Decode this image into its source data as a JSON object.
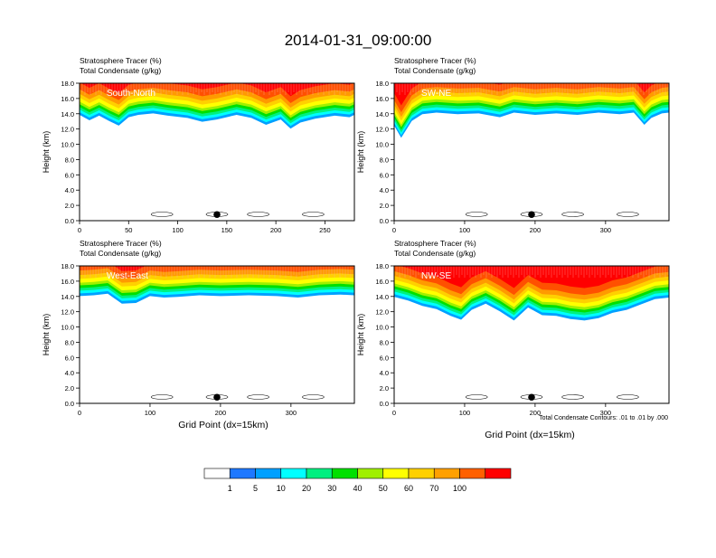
{
  "figure": {
    "title": "2014-01-31_09:00:00",
    "footnote": "Total Condensate Contours: .01 to .01 by .000",
    "xlabel": "Grid Point (dx=15km)",
    "ylabel": "Height (km)"
  },
  "colorbar": {
    "colors": [
      "#ffffff",
      "#1e78ff",
      "#00a0ff",
      "#00ffff",
      "#00f080",
      "#00e000",
      "#a0f000",
      "#ffff00",
      "#ffd000",
      "#ffa000",
      "#ff6000",
      "#ff0000"
    ],
    "labels": [
      "1",
      "5",
      "10",
      "20",
      "30",
      "40",
      "50",
      "60",
      "70",
      "100"
    ]
  },
  "chart_data": [
    {
      "type": "heatmap",
      "panel": "South-North",
      "title_left_1": "Stratosphere Tracer   (%)",
      "title_left_2": "Total Condensate   (g/kg)",
      "xlim": [
        0,
        280
      ],
      "xticks": [
        0,
        50,
        100,
        150,
        200,
        250
      ],
      "ylim": [
        0,
        18
      ],
      "yticks": [
        0,
        2,
        4,
        6,
        8,
        10,
        12,
        14,
        16,
        18
      ],
      "tropopause_km": [
        [
          0,
          15.6
        ],
        [
          10,
          14.9
        ],
        [
          20,
          15.5
        ],
        [
          30,
          14.8
        ],
        [
          40,
          14.2
        ],
        [
          50,
          15.3
        ],
        [
          60,
          15.6
        ],
        [
          75,
          15.8
        ],
        [
          90,
          15.5
        ],
        [
          110,
          15.2
        ],
        [
          125,
          14.7
        ],
        [
          140,
          15.0
        ],
        [
          160,
          15.6
        ],
        [
          175,
          15.2
        ],
        [
          190,
          14.3
        ],
        [
          205,
          15.0
        ],
        [
          215,
          13.8
        ],
        [
          225,
          14.6
        ],
        [
          240,
          15.1
        ],
        [
          260,
          15.5
        ],
        [
          275,
          15.3
        ],
        [
          280,
          15.6
        ]
      ],
      "contour_label": ".01",
      "station_x": 140
    },
    {
      "type": "heatmap",
      "panel": "SW-NE",
      "title_left_1": "Stratosphere Tracer   (%)",
      "title_left_2": "Total Condensate   (g/kg)",
      "xlim": [
        0,
        390
      ],
      "xticks": [
        0,
        100,
        200,
        300
      ],
      "ylim": [
        0,
        18
      ],
      "yticks": [
        0,
        2,
        4,
        6,
        8,
        10,
        12,
        14,
        16,
        18
      ],
      "tropopause_km": [
        [
          0,
          14.2
        ],
        [
          10,
          12.6
        ],
        [
          25,
          14.8
        ],
        [
          40,
          15.7
        ],
        [
          60,
          15.9
        ],
        [
          90,
          15.7
        ],
        [
          120,
          15.8
        ],
        [
          150,
          15.3
        ],
        [
          170,
          15.9
        ],
        [
          200,
          15.6
        ],
        [
          230,
          15.8
        ],
        [
          260,
          15.6
        ],
        [
          290,
          15.9
        ],
        [
          320,
          15.7
        ],
        [
          340,
          15.9
        ],
        [
          355,
          14.3
        ],
        [
          365,
          15.2
        ],
        [
          380,
          15.8
        ],
        [
          390,
          15.9
        ]
      ],
      "station_x": 195
    },
    {
      "type": "heatmap",
      "panel": "West-East",
      "title_left_1": "Stratosphere Tracer   (%)",
      "title_left_2": "Total Condensate   (g/kg)",
      "xlim": [
        0,
        390
      ],
      "xticks": [
        0,
        100,
        200,
        300
      ],
      "ylim": [
        0,
        18
      ],
      "yticks": [
        0,
        2,
        4,
        6,
        8,
        10,
        12,
        14,
        16,
        18
      ],
      "tropopause_km": [
        [
          0,
          15.8
        ],
        [
          20,
          15.9
        ],
        [
          40,
          16.1
        ],
        [
          60,
          14.8
        ],
        [
          80,
          14.9
        ],
        [
          100,
          15.8
        ],
        [
          120,
          15.6
        ],
        [
          140,
          15.7
        ],
        [
          170,
          15.9
        ],
        [
          200,
          15.8
        ],
        [
          240,
          15.9
        ],
        [
          280,
          15.8
        ],
        [
          310,
          15.6
        ],
        [
          340,
          15.9
        ],
        [
          370,
          16.0
        ],
        [
          390,
          15.9
        ]
      ],
      "contour_labels": [
        ".01",
        ".01"
      ],
      "station_x": 195
    },
    {
      "type": "heatmap",
      "panel": "NW-SE",
      "title_left_1": "Stratosphere Tracer   (%)",
      "title_left_2": "Total Condensate   (g/kg)",
      "xlim": [
        0,
        390
      ],
      "xticks": [
        0,
        100,
        200,
        300
      ],
      "ylim": [
        0,
        18
      ],
      "yticks": [
        0,
        2,
        4,
        6,
        8,
        10,
        12,
        14,
        16,
        18
      ],
      "tropopause_km": [
        [
          0,
          15.7
        ],
        [
          20,
          15.2
        ],
        [
          40,
          14.5
        ],
        [
          60,
          14.1
        ],
        [
          80,
          13.2
        ],
        [
          95,
          12.7
        ],
        [
          110,
          14.0
        ],
        [
          130,
          14.8
        ],
        [
          150,
          13.8
        ],
        [
          170,
          12.6
        ],
        [
          190,
          14.3
        ],
        [
          210,
          13.3
        ],
        [
          230,
          13.2
        ],
        [
          250,
          12.8
        ],
        [
          270,
          12.6
        ],
        [
          290,
          12.9
        ],
        [
          310,
          13.6
        ],
        [
          330,
          14.0
        ],
        [
          350,
          14.7
        ],
        [
          370,
          15.4
        ],
        [
          390,
          15.6
        ]
      ],
      "station_x": 195
    }
  ]
}
